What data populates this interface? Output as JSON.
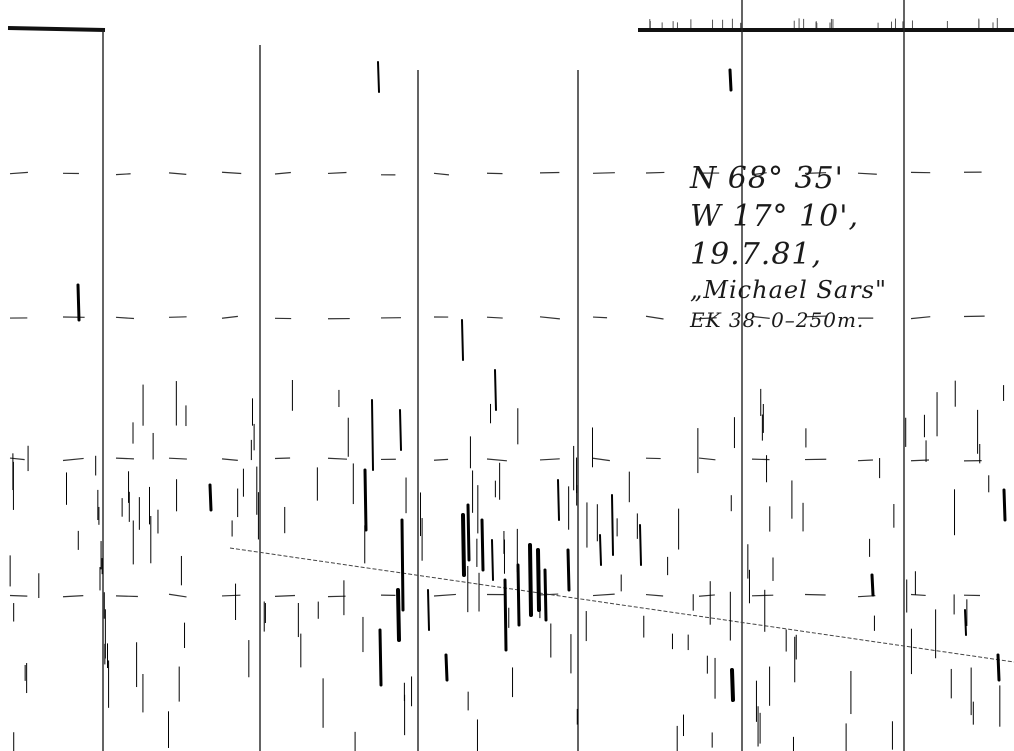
{
  "annotation": {
    "latitude": "N 68° 35'",
    "longitude": "W 17° 10',",
    "date": "19.7.81,",
    "vessel": "„Michael Sars\"",
    "station": "EK 38.  0–250m."
  },
  "colors": {
    "paper": "#ffffff",
    "ink": "#1a1a1a",
    "grid": "#222222"
  }
}
